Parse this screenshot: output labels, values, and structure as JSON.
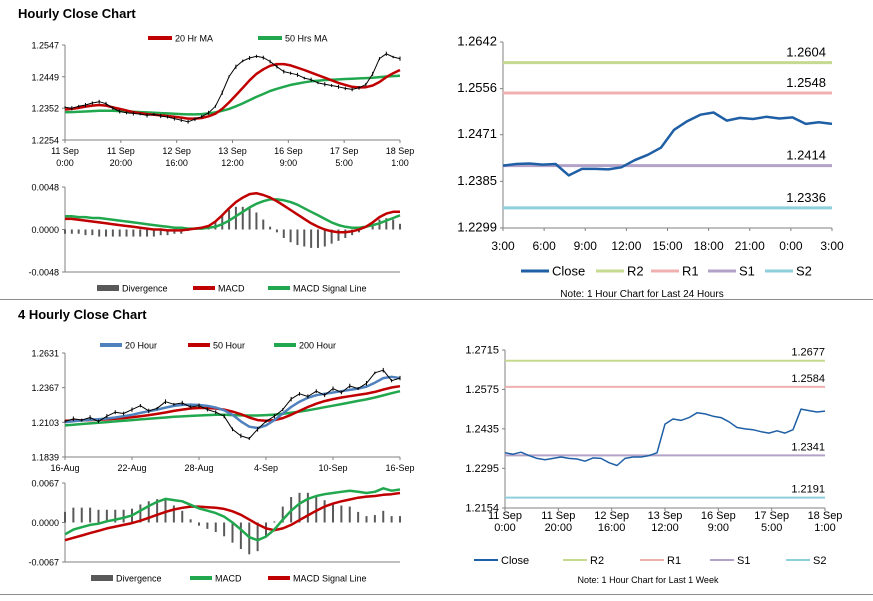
{
  "sections": {
    "hourly_title": "Hourly Close Chart",
    "four_hourly_title": "4 Hourly Close Chart"
  },
  "chart_data": [
    {
      "id": "hourly_price",
      "type": "line",
      "title": "",
      "legend": [
        "20 Hr MA",
        "50 Hrs MA"
      ],
      "colors": {
        "price": "#000000",
        "ma20": "#c00000",
        "ma50": "#21a84e"
      },
      "x_ticks": [
        [
          "11 Sep",
          "0:00"
        ],
        [
          "11 Sep",
          "20:00"
        ],
        [
          "12 Sep",
          "16:00"
        ],
        [
          "13 Sep",
          "12:00"
        ],
        [
          "16 Sep",
          "9:00"
        ],
        [
          "17 Sep",
          "5:00"
        ],
        [
          "18 Sep",
          "1:00"
        ]
      ],
      "y_ticks": [
        "1.2547",
        "1.2449",
        "1.2352",
        "1.2254"
      ],
      "ylim": [
        1.2254,
        1.2547
      ],
      "series": [
        {
          "name": "Close",
          "values": [
            1.2355,
            1.2352,
            1.2358,
            1.2362,
            1.2368,
            1.2372,
            1.2366,
            1.2352,
            1.2342,
            1.2338,
            1.2336,
            1.2334,
            1.233,
            1.2333,
            1.2328,
            1.2325,
            1.232,
            1.2315,
            1.231,
            1.2318,
            1.2326,
            1.2338,
            1.2358,
            1.24,
            1.245,
            1.248,
            1.2498,
            1.2507,
            1.2512,
            1.2508,
            1.2496,
            1.248,
            1.2465,
            1.246,
            1.2455,
            1.2445,
            1.244,
            1.243,
            1.2426,
            1.2422,
            1.2418,
            1.2413,
            1.241,
            1.2415,
            1.2425,
            1.2458,
            1.2505,
            1.252,
            1.251,
            1.2505
          ]
        },
        {
          "name": "20 Hr MA",
          "values": [
            1.2348,
            1.235,
            1.2353,
            1.2357,
            1.236,
            1.2362,
            1.236,
            1.2355,
            1.235,
            1.2345,
            1.234,
            1.2337,
            1.2334,
            1.2332,
            1.233,
            1.2328,
            1.2326,
            1.2323,
            1.232,
            1.232,
            1.2322,
            1.2327,
            1.2335,
            1.235,
            1.237,
            1.2392,
            1.2415,
            1.2438,
            1.2458,
            1.2472,
            1.2483,
            1.2488,
            1.2488,
            1.2484,
            1.2477,
            1.247,
            1.2462,
            1.2454,
            1.2446,
            1.2438,
            1.243,
            1.2424,
            1.2418,
            1.2416,
            1.2417,
            1.2422,
            1.2433,
            1.2448,
            1.246,
            1.247
          ]
        },
        {
          "name": "50 Hrs MA",
          "values": [
            1.234,
            1.234,
            1.2341,
            1.2342,
            1.2343,
            1.2344,
            1.2344,
            1.2344,
            1.2343,
            1.2342,
            1.2341,
            1.234,
            1.2339,
            1.2338,
            1.2337,
            1.2336,
            1.2335,
            1.2334,
            1.2333,
            1.2333,
            1.2334,
            1.2336,
            1.2339,
            1.2344,
            1.235,
            1.2358,
            1.2367,
            1.2377,
            1.2387,
            1.2396,
            1.2405,
            1.2412,
            1.2418,
            1.2424,
            1.2428,
            1.2432,
            1.2435,
            1.2437,
            1.2439,
            1.244,
            1.2441,
            1.2442,
            1.2443,
            1.2444,
            1.2445,
            1.2446,
            1.2448,
            1.245,
            1.2451,
            1.2452
          ]
        }
      ]
    },
    {
      "id": "hourly_macd",
      "type": "line",
      "legend": [
        "Divergence",
        "MACD",
        "MACD Signal Line"
      ],
      "colors": {
        "divergence": "#595959",
        "macd": "#c00000",
        "signal": "#21a84e"
      },
      "y_ticks": [
        "0.0048",
        "0.0000",
        "-0.0048"
      ],
      "ylim": [
        -0.0048,
        0.0048
      ],
      "series": [
        {
          "name": "MACD",
          "values": [
            0.0012,
            0.0012,
            0.0011,
            0.001,
            0.0009,
            0.0008,
            0.0007,
            0.0006,
            0.0005,
            0.0004,
            0.0003,
            0.0002,
            0.0001,
            0.0,
            0.0,
            -0.0001,
            -0.0001,
            -0.0001,
            0.0,
            0.0001,
            0.0002,
            0.0004,
            0.0009,
            0.0016,
            0.0024,
            0.0031,
            0.0036,
            0.004,
            0.0041,
            0.0039,
            0.0036,
            0.0032,
            0.0027,
            0.0022,
            0.0017,
            0.0012,
            0.0007,
            0.0003,
            0.0,
            -0.0002,
            -0.0003,
            -0.0003,
            -0.0002,
            0.0,
            0.0003,
            0.0008,
            0.0014,
            0.0018,
            0.002,
            0.002
          ]
        },
        {
          "name": "MACD Signal Line",
          "values": [
            0.0015,
            0.0015,
            0.0014,
            0.0014,
            0.0013,
            0.0013,
            0.0012,
            0.0011,
            0.001,
            0.0009,
            0.0008,
            0.0007,
            0.0006,
            0.0005,
            0.0004,
            0.0003,
            0.0002,
            0.0002,
            0.0001,
            0.0001,
            0.0001,
            0.0002,
            0.0003,
            0.0006,
            0.001,
            0.0015,
            0.002,
            0.0025,
            0.0029,
            0.0032,
            0.0034,
            0.0034,
            0.0033,
            0.0031,
            0.0028,
            0.0024,
            0.002,
            0.0016,
            0.0012,
            0.0008,
            0.0005,
            0.0003,
            0.0002,
            0.0002,
            0.0003,
            0.0005,
            0.0007,
            0.001,
            0.0013,
            0.0016
          ]
        }
      ]
    },
    {
      "id": "hourly_pivot",
      "type": "line",
      "legend": [
        "Close",
        "R2",
        "R1",
        "S1",
        "S2"
      ],
      "colors": {
        "Close": "#1f5fa5",
        "R2": "#c5da8e",
        "R1": "#f0b0b0",
        "S1": "#b3a2c7",
        "S2": "#8ecfdc"
      },
      "x_ticks": [
        "3:00",
        "6:00",
        "9:00",
        "12:00",
        "15:00",
        "18:00",
        "21:00",
        "0:00",
        "3:00"
      ],
      "y_ticks": [
        "1.2642",
        "1.2556",
        "1.2471",
        "1.2385",
        "1.2299"
      ],
      "ylim": [
        1.2299,
        1.2642
      ],
      "levels": [
        {
          "name": "R2",
          "value": 1.2604,
          "label": "1.2604"
        },
        {
          "name": "R1",
          "value": 1.2548,
          "label": "1.2548"
        },
        {
          "name": "S1",
          "value": 1.2414,
          "label": "1.2414"
        },
        {
          "name": "S2",
          "value": 1.2336,
          "label": "1.2336"
        }
      ],
      "close": [
        1.2414,
        1.2417,
        1.2418,
        1.2416,
        1.2417,
        1.2396,
        1.2408,
        1.2408,
        1.2407,
        1.2411,
        1.2424,
        1.2434,
        1.2447,
        1.248,
        1.2496,
        1.2508,
        1.2512,
        1.2497,
        1.2502,
        1.25,
        1.2504,
        1.2501,
        1.2503,
        1.2491,
        1.2494,
        1.2491
      ],
      "note": "Note: 1 Hour Chart for Last 24 Hours"
    },
    {
      "id": "four_hourly_price",
      "type": "line",
      "legend": [
        "20 Hour",
        "50 Hour",
        "200 Hour"
      ],
      "colors": {
        "price": "#000000",
        "ma20": "#4f81bd",
        "ma50": "#c00000",
        "ma200": "#21a84e"
      },
      "x_ticks": [
        "16-Aug",
        "22-Aug",
        "28-Aug",
        "4-Sep",
        "10-Sep",
        "16-Sep"
      ],
      "y_ticks": [
        "1.2631",
        "1.2367",
        "1.2103",
        "1.1839"
      ],
      "ylim": [
        1.1839,
        1.2631
      ],
      "series": [
        {
          "name": "Close",
          "values": [
            1.211,
            1.213,
            1.212,
            1.214,
            1.211,
            1.215,
            1.218,
            1.217,
            1.22,
            1.223,
            1.219,
            1.221,
            1.226,
            1.224,
            1.225,
            1.222,
            1.223,
            1.22,
            1.218,
            1.215,
            1.205,
            1.2,
            1.198,
            1.205,
            1.211,
            1.215,
            1.22,
            1.228,
            1.232,
            1.23,
            1.234,
            1.231,
            1.236,
            1.233,
            1.238,
            1.236,
            1.24,
            1.248,
            1.25,
            1.242,
            1.244
          ]
        },
        {
          "name": "20 Hour",
          "values": [
            1.2105,
            1.2112,
            1.2118,
            1.2122,
            1.2126,
            1.2132,
            1.214,
            1.215,
            1.216,
            1.2175,
            1.2188,
            1.22,
            1.2215,
            1.2228,
            1.2236,
            1.2238,
            1.2235,
            1.2228,
            1.2215,
            1.2195,
            1.216,
            1.211,
            1.207,
            1.206,
            1.208,
            1.212,
            1.217,
            1.222,
            1.226,
            1.229,
            1.231,
            1.232,
            1.233,
            1.234,
            1.235,
            1.236,
            1.2375,
            1.2405,
            1.244,
            1.245,
            1.244
          ]
        },
        {
          "name": "50 Hour",
          "values": [
            1.2115,
            1.2116,
            1.2118,
            1.212,
            1.2122,
            1.2125,
            1.213,
            1.2135,
            1.2142,
            1.215,
            1.2158,
            1.2167,
            1.2178,
            1.219,
            1.22,
            1.2208,
            1.2212,
            1.2212,
            1.2208,
            1.22,
            1.2185,
            1.2165,
            1.214,
            1.212,
            1.2115,
            1.212,
            1.2135,
            1.216,
            1.219,
            1.222,
            1.2245,
            1.2265,
            1.228,
            1.2292,
            1.2302,
            1.2312,
            1.2322,
            1.2335,
            1.2352,
            1.2368,
            1.2378
          ]
        },
        {
          "name": "200 Hour",
          "values": [
            1.208,
            1.2085,
            1.209,
            1.2095,
            1.21,
            1.2105,
            1.211,
            1.2115,
            1.212,
            1.2125,
            1.213,
            1.2135,
            1.214,
            1.2145,
            1.2148,
            1.2152,
            1.2155,
            1.2158,
            1.216,
            1.216,
            1.2158,
            1.2156,
            1.2155,
            1.2155,
            1.2158,
            1.2162,
            1.2168,
            1.2176,
            1.2185,
            1.2195,
            1.2206,
            1.2218,
            1.223,
            1.2242,
            1.2254,
            1.2266,
            1.2278,
            1.2292,
            1.2308,
            1.2325,
            1.234
          ]
        }
      ]
    },
    {
      "id": "four_hourly_macd",
      "type": "line",
      "legend": [
        "Divergence",
        "MACD",
        "MACD Signal Line"
      ],
      "colors": {
        "divergence": "#595959",
        "macd": "#21a84e",
        "signal": "#c00000"
      },
      "y_ticks": [
        "0.0067",
        "0.0000",
        "-0.0067"
      ],
      "ylim": [
        -0.0067,
        0.0067
      ],
      "series": [
        {
          "name": "MACD",
          "values": [
            -0.002,
            -0.0012,
            -0.0008,
            -0.0004,
            -0.0002,
            0.0002,
            0.0005,
            0.0008,
            0.0012,
            0.002,
            0.0028,
            0.0035,
            0.004,
            0.0038,
            0.0036,
            0.003,
            0.0024,
            0.002,
            0.0016,
            0.001,
            0.0,
            -0.0012,
            -0.0025,
            -0.003,
            -0.0024,
            -0.0012,
            0.0005,
            0.002,
            0.0032,
            0.004,
            0.0045,
            0.0048,
            0.005,
            0.0052,
            0.0054,
            0.0052,
            0.005,
            0.0052,
            0.0058,
            0.0054,
            0.0056
          ]
        },
        {
          "name": "MACD Signal Line",
          "values": [
            -0.003,
            -0.0026,
            -0.0022,
            -0.0018,
            -0.0014,
            -0.001,
            -0.0007,
            -0.0004,
            -0.0001,
            0.0003,
            0.0008,
            0.0013,
            0.0018,
            0.0022,
            0.0025,
            0.0027,
            0.0027,
            0.0026,
            0.0025,
            0.0023,
            0.0019,
            0.0013,
            0.0005,
            -0.0003,
            -0.001,
            -0.0013,
            -0.001,
            -0.0004,
            0.0004,
            0.0012,
            0.002,
            0.0027,
            0.0032,
            0.0036,
            0.0039,
            0.0042,
            0.0044,
            0.0045,
            0.0047,
            0.0048,
            0.005
          ]
        }
      ]
    },
    {
      "id": "four_hourly_pivot",
      "type": "line",
      "legend": [
        "Close",
        "R2",
        "R1",
        "S1",
        "S2"
      ],
      "colors": {
        "Close": "#1f5fa5",
        "R2": "#c5da8e",
        "R1": "#f0b0b0",
        "S1": "#b3a2c7",
        "S2": "#8ecfdc"
      },
      "x_ticks": [
        [
          "11 Sep",
          "0:00"
        ],
        [
          "11 Sep",
          "20:00"
        ],
        [
          "12 Sep",
          "16:00"
        ],
        [
          "13 Sep",
          "12:00"
        ],
        [
          "16 Sep",
          "9:00"
        ],
        [
          "17 Sep",
          "5:00"
        ],
        [
          "18 Sep",
          "1:00"
        ]
      ],
      "y_ticks": [
        "1.2715",
        "1.2575",
        "1.2435",
        "1.2295",
        "1.2154"
      ],
      "ylim": [
        1.2154,
        1.2715
      ],
      "levels": [
        {
          "name": "R2",
          "value": 1.2677,
          "label": "1.2677"
        },
        {
          "name": "R1",
          "value": 1.2584,
          "label": "1.2584"
        },
        {
          "name": "S1",
          "value": 1.2341,
          "label": "1.2341"
        },
        {
          "name": "S2",
          "value": 1.2191,
          "label": "1.2191"
        }
      ],
      "close": [
        1.235,
        1.2345,
        1.2352,
        1.234,
        1.233,
        1.2325,
        1.233,
        1.2335,
        1.233,
        1.2328,
        1.232,
        1.2332,
        1.233,
        1.2315,
        1.2305,
        1.233,
        1.2335,
        1.2335,
        1.234,
        1.235,
        1.2452,
        1.247,
        1.2465,
        1.2475,
        1.2492,
        1.2488,
        1.248,
        1.2475,
        1.246,
        1.244,
        1.2435,
        1.2432,
        1.2425,
        1.242,
        1.2428,
        1.242,
        1.2432,
        1.2505,
        1.25,
        1.2495,
        1.2498
      ],
      "note": "Note: 1 Hour Chart for Last 1 Week"
    }
  ]
}
